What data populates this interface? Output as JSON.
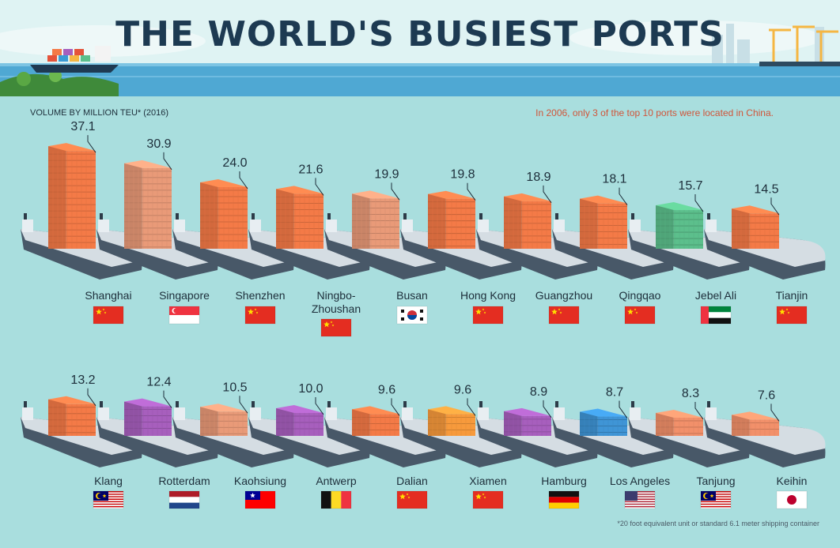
{
  "title": "THE WORLD'S BUSIEST PORTS",
  "subtitle": "VOLUME BY MILLION TEU* (2016)",
  "note": "In 2006, only 3 of the top 10 ports were located in China.",
  "footnote": "*20 foot equivalent unit or standard 6.1 meter shipping container",
  "chart_data": {
    "type": "bar",
    "title": "THE WORLD'S BUSIEST PORTS",
    "ylabel": "VOLUME BY MILLION TEU* (2016)",
    "categories": [
      "Shanghai",
      "Singapore",
      "Shenzhen",
      "Ningbo-Zhoushan",
      "Busan",
      "Hong Kong",
      "Guangzhou",
      "Qingqao",
      "Jebel Ali",
      "Tianjin",
      "Klang",
      "Rotterdam",
      "Kaohsiung",
      "Antwerp",
      "Dalian",
      "Xiamen",
      "Hamburg",
      "Los Angeles",
      "Tanjung",
      "Keihin"
    ],
    "labels": [
      "Shanghai",
      "Singapore",
      "Shenzhen",
      "Ningbo-\nZhoushan",
      "Busan",
      "Hong Kong",
      "Guangzhou",
      "Qingqao",
      "Jebel Ali",
      "Tianjin",
      "Klang",
      "Rotterdam",
      "Kaohsiung",
      "Antwerp",
      "Dalian",
      "Xiamen",
      "Hamburg",
      "Los Angeles",
      "Tanjung",
      "Keihin"
    ],
    "values": [
      37.1,
      30.9,
      24.0,
      21.6,
      19.9,
      19.8,
      18.9,
      18.1,
      15.7,
      14.5,
      13.2,
      12.4,
      10.5,
      10.0,
      9.6,
      9.6,
      8.9,
      8.7,
      8.3,
      7.6
    ],
    "value_labels": [
      "37.1",
      "30.9",
      "24.0",
      "21.6",
      "19.9",
      "19.8",
      "18.9",
      "18.1",
      "15.7",
      "14.5",
      "13.2",
      "12.4",
      "10.5",
      "10.0",
      "9.6",
      "9.6",
      "8.9",
      "8.7",
      "8.3",
      "7.6"
    ],
    "flags": [
      "china",
      "singapore",
      "china",
      "china",
      "south-korea",
      "china",
      "china",
      "china",
      "uae",
      "china",
      "malaysia",
      "netherlands",
      "taiwan",
      "belgium",
      "china",
      "china",
      "germany",
      "usa",
      "malaysia",
      "japan"
    ],
    "container_colors": [
      "#f47a47",
      "#e99a78",
      "#f47a47",
      "#f47a47",
      "#e99a78",
      "#f47a47",
      "#f47a47",
      "#f47a47",
      "#5cbf8c",
      "#f47a47",
      "#f47a47",
      "#a75fbd",
      "#e99a78",
      "#a75fbd",
      "#f47a47",
      "#f79a3c",
      "#a75fbd",
      "#3f95d6",
      "#f2906a",
      "#f2906a"
    ]
  }
}
